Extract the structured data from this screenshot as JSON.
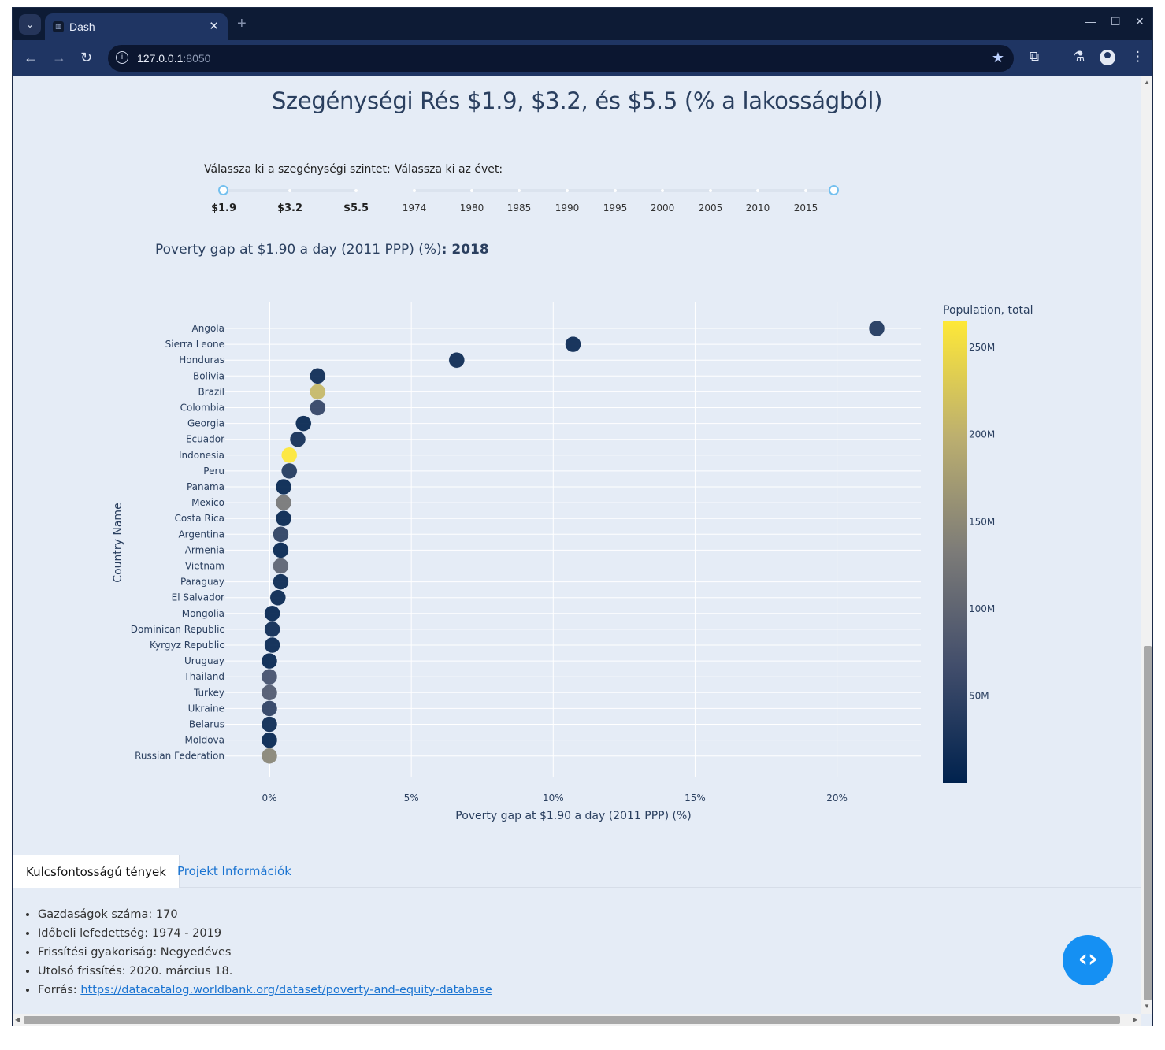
{
  "browser": {
    "tab_title": "Dash",
    "url_host": "127.0.0.1",
    "url_port": ":8050"
  },
  "page": {
    "title": "Szegénységi Rés $1.9, $3.2, és $5.5 (% a lakosságból)",
    "poverty_label": "Válassza ki a szegénységi szintet:",
    "year_label": "Válassza ki az évet:",
    "poverty_marks": [
      "$1.9",
      "$3.2",
      "$5.5"
    ],
    "poverty_selected": "$1.9",
    "year_marks": [
      "1974",
      "1980",
      "1985",
      "1990",
      "1995",
      "2000",
      "2005",
      "2010",
      "2015"
    ],
    "year_selected": "2018",
    "subheading_prefix": "Poverty gap at $1.90 a day (2011 PPP) (%)",
    "subheading_sep": ": ",
    "subheading_year": "2018"
  },
  "chart_data": {
    "type": "scatter",
    "xlabel": "Poverty gap at $1.90 a day (2011 PPP) (%)",
    "ylabel": "Country Name",
    "x_ticks": [
      "0%",
      "5%",
      "10%",
      "15%",
      "20%"
    ],
    "xlim": [
      -0.9,
      22.1
    ],
    "colorbar_title": "Population, total",
    "colorbar_ticks": [
      "50M",
      "100M",
      "150M",
      "200M",
      "250M"
    ],
    "colorscale": [
      "#00224e",
      "#414d6b",
      "#7c7b78",
      "#bcaf6f",
      "#fee838"
    ],
    "color_range": [
      0,
      265
    ],
    "points": [
      {
        "country": "Angola",
        "x": 21.4,
        "pop": 31
      },
      {
        "country": "Sierra Leone",
        "x": 10.7,
        "pop": 8
      },
      {
        "country": "Honduras",
        "x": 6.6,
        "pop": 10
      },
      {
        "country": "Bolivia",
        "x": 1.7,
        "pop": 11
      },
      {
        "country": "Brazil",
        "x": 1.7,
        "pop": 209
      },
      {
        "country": "Colombia",
        "x": 1.7,
        "pop": 50
      },
      {
        "country": "Georgia",
        "x": 1.2,
        "pop": 4
      },
      {
        "country": "Ecuador",
        "x": 1.0,
        "pop": 17
      },
      {
        "country": "Indonesia",
        "x": 0.7,
        "pop": 268
      },
      {
        "country": "Peru",
        "x": 0.7,
        "pop": 32
      },
      {
        "country": "Panama",
        "x": 0.5,
        "pop": 4
      },
      {
        "country": "Mexico",
        "x": 0.5,
        "pop": 126
      },
      {
        "country": "Costa Rica",
        "x": 0.5,
        "pop": 5
      },
      {
        "country": "Argentina",
        "x": 0.4,
        "pop": 44
      },
      {
        "country": "Armenia",
        "x": 0.4,
        "pop": 3
      },
      {
        "country": "Vietnam",
        "x": 0.4,
        "pop": 96
      },
      {
        "country": "Paraguay",
        "x": 0.4,
        "pop": 7
      },
      {
        "country": "El Salvador",
        "x": 0.3,
        "pop": 6
      },
      {
        "country": "Mongolia",
        "x": 0.1,
        "pop": 3
      },
      {
        "country": "Dominican Republic",
        "x": 0.1,
        "pop": 11
      },
      {
        "country": "Kyrgyz Republic",
        "x": 0.1,
        "pop": 6
      },
      {
        "country": "Uruguay",
        "x": 0.0,
        "pop": 3
      },
      {
        "country": "Thailand",
        "x": 0.0,
        "pop": 69
      },
      {
        "country": "Turkey",
        "x": 0.0,
        "pop": 82
      },
      {
        "country": "Ukraine",
        "x": 0.0,
        "pop": 45
      },
      {
        "country": "Belarus",
        "x": 0.0,
        "pop": 9
      },
      {
        "country": "Moldova",
        "x": 0.0,
        "pop": 3
      },
      {
        "country": "Russian Federation",
        "x": 0.0,
        "pop": 145
      }
    ]
  },
  "tabs": [
    {
      "label": "Kulcsfontosságú tények",
      "active": true
    },
    {
      "label": "Projekt Információk",
      "active": false
    }
  ],
  "facts": [
    "Gazdaságok száma: 170",
    "Időbeli lefedettség: 1974 - 2019",
    "Frissítési gyakoriság: Negyedéves",
    "Utolsó frissítés: 2020. március 18."
  ],
  "source_label": "Forrás: ",
  "source_link": "https://datacatalog.worldbank.org/dataset/poverty-and-equity-database",
  "fab_icon": "code-brackets-icon",
  "fab_glyph": "‹›"
}
